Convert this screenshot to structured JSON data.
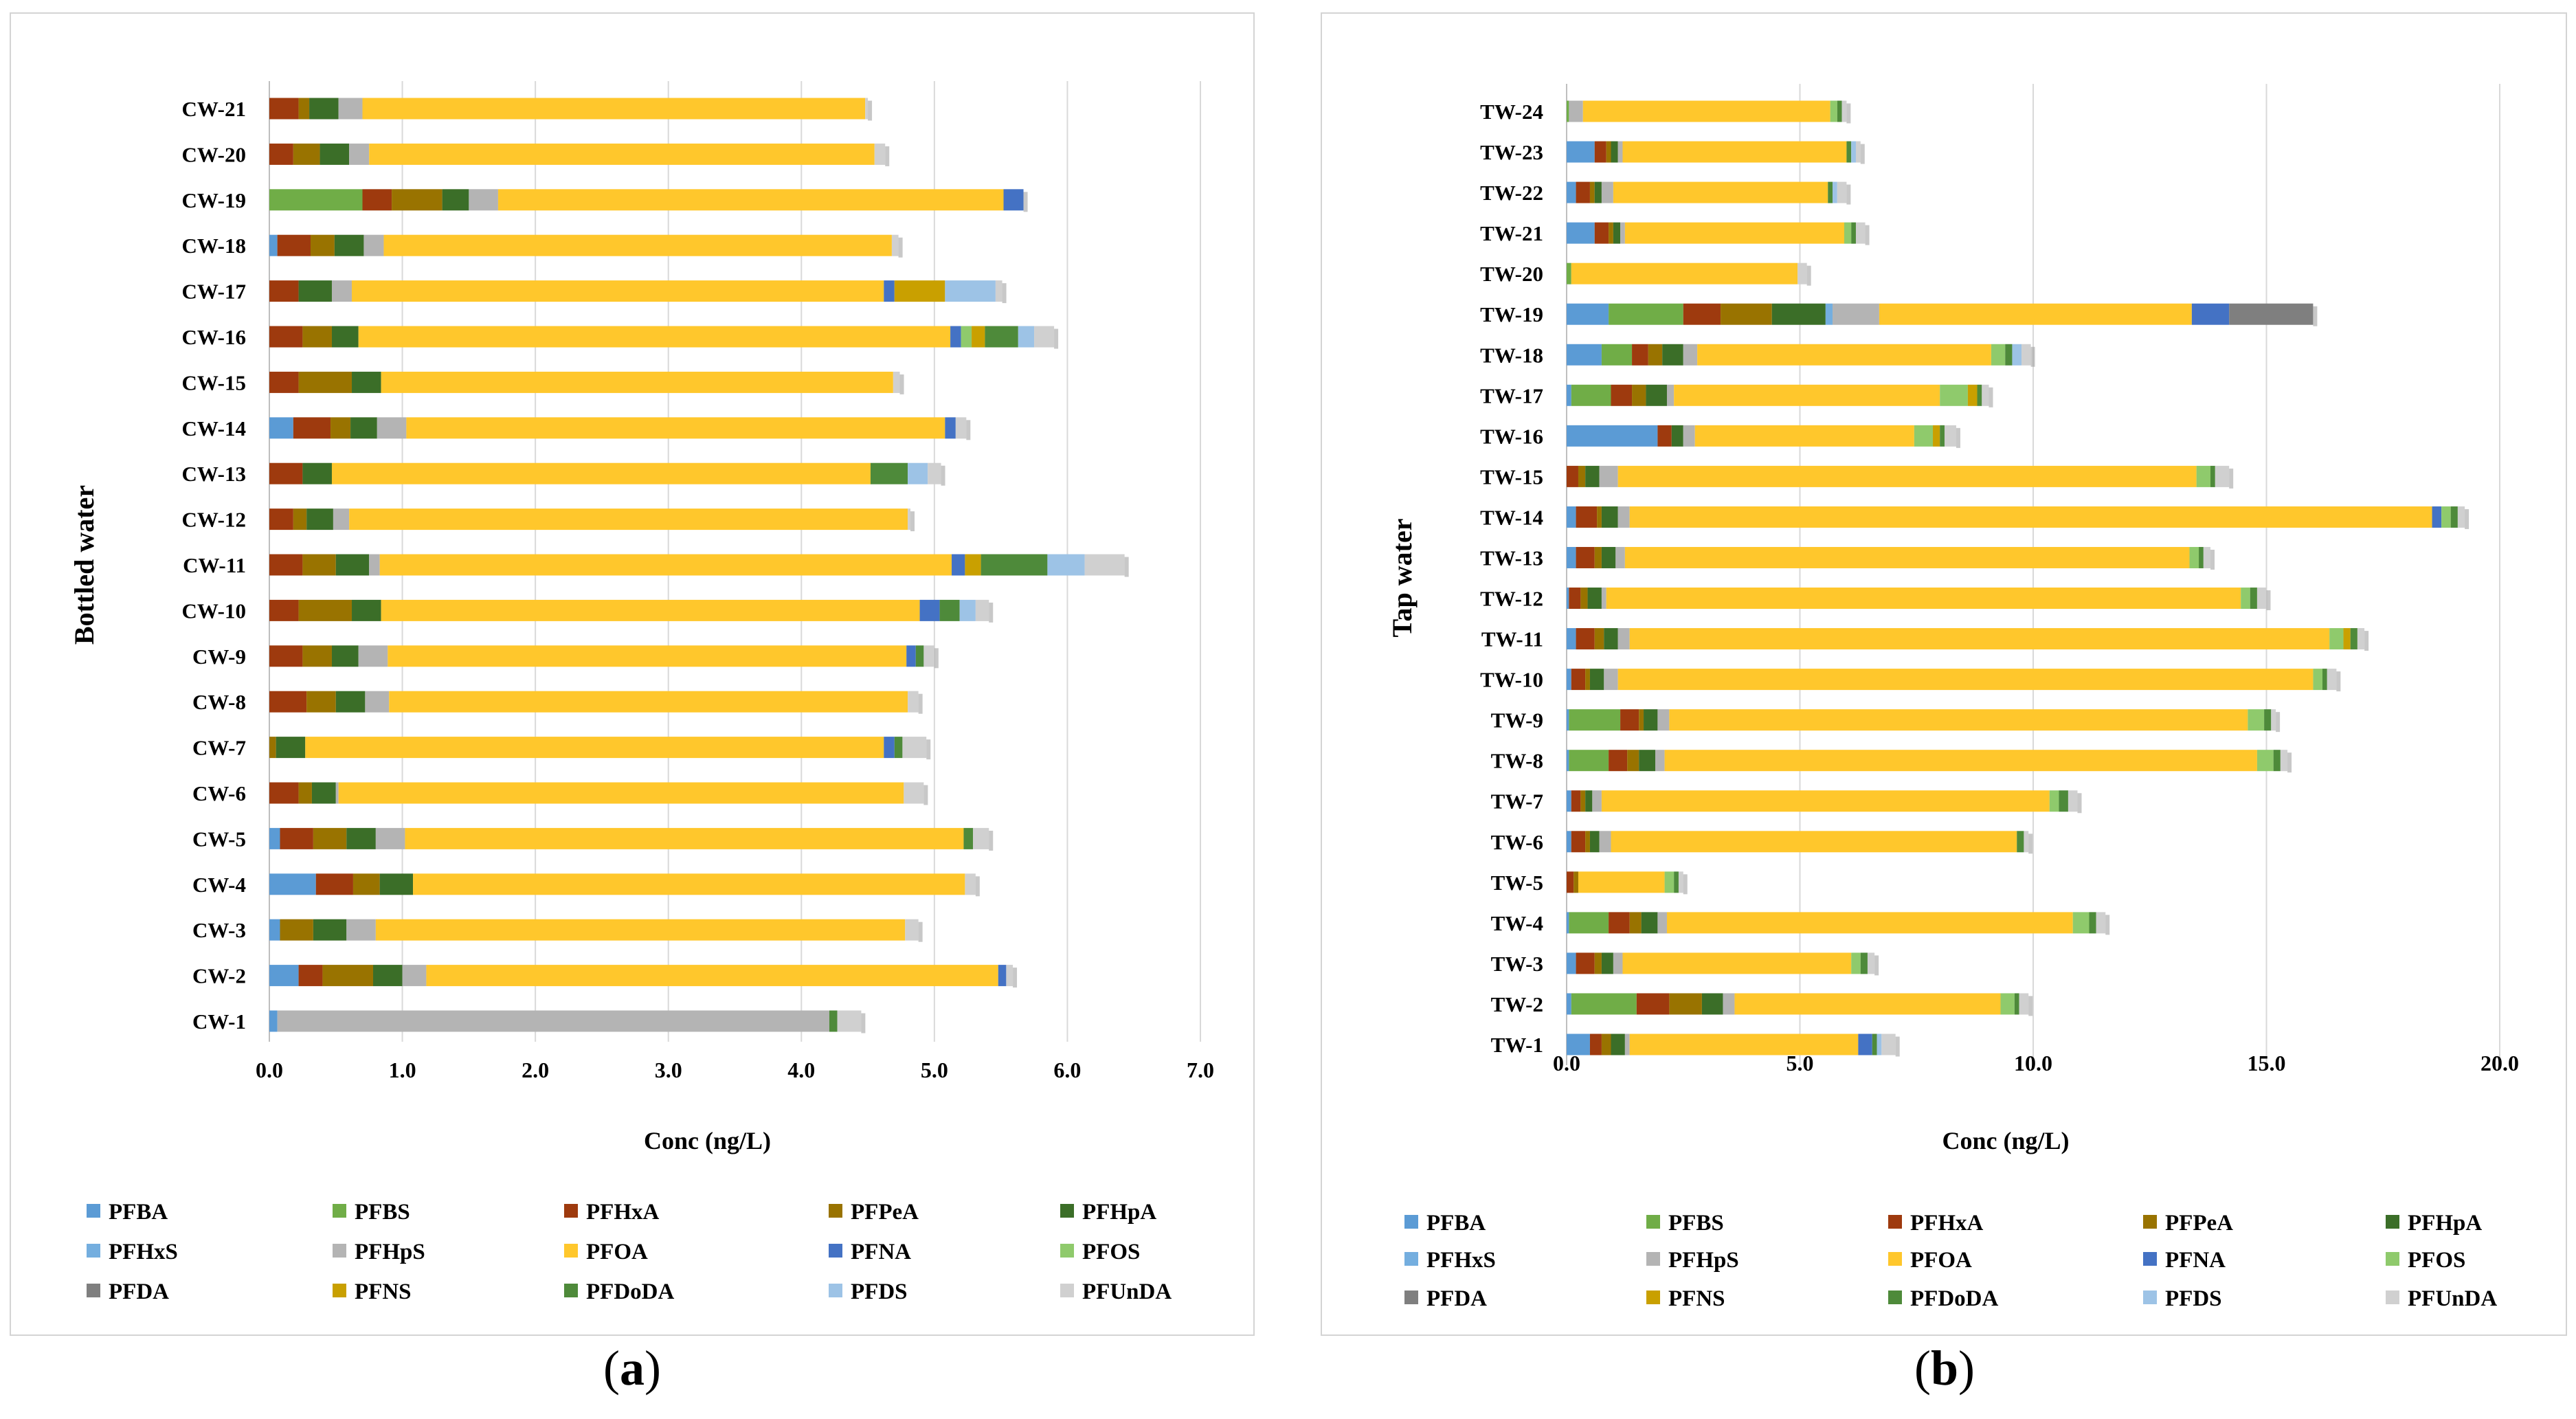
{
  "captions": {
    "a": "a",
    "b": "b"
  },
  "compounds": [
    {
      "name": "PFBA",
      "color": "#5b9bd5"
    },
    {
      "name": "PFBS",
      "color": "#70ad47"
    },
    {
      "name": "PFHxA",
      "color": "#9e3a0e"
    },
    {
      "name": "PFPeA",
      "color": "#997300"
    },
    {
      "name": "PFHpA",
      "color": "#3b6e28"
    },
    {
      "name": "PFHxS",
      "color": "#74aedf"
    },
    {
      "name": "PFHpS",
      "color": "#b4b4b4"
    },
    {
      "name": "PFOA",
      "color": "#ffc72c"
    },
    {
      "name": "PFNA",
      "color": "#4472c4"
    },
    {
      "name": "PFOS",
      "color": "#8fca6c"
    },
    {
      "name": "PFDA",
      "color": "#7f7f7f"
    },
    {
      "name": "PFNS",
      "color": "#c9a000"
    },
    {
      "name": "PFDoDA",
      "color": "#4e8a3a"
    },
    {
      "name": "PFDS",
      "color": "#9dc3e6"
    },
    {
      "name": "PFUnDA",
      "color": "#d0d0d0"
    }
  ],
  "chart_data": [
    {
      "type": "bar",
      "orientation": "horizontal",
      "stacked": true,
      "panel": "a",
      "ylabel": "Bottled water",
      "xlabel": "Conc (ng/L)",
      "xlim": [
        0,
        7
      ],
      "xticks": [
        0,
        1,
        2,
        3,
        4,
        5,
        6,
        7
      ],
      "xtick_labels": [
        "0.0",
        "1.0",
        "2.0",
        "3.0",
        "4.0",
        "5.0",
        "6.0",
        "7.0"
      ],
      "legend_position": "bottom",
      "grid": true,
      "categories": [
        "CW-1",
        "CW-2",
        "CW-3",
        "CW-4",
        "CW-5",
        "CW-6",
        "CW-7",
        "CW-8",
        "CW-9",
        "CW-10",
        "CW-11",
        "CW-12",
        "CW-13",
        "CW-14",
        "CW-15",
        "CW-16",
        "CW-17",
        "CW-18",
        "CW-19",
        "CW-20",
        "CW-21"
      ],
      "series": [
        {
          "name": "PFBA",
          "values": [
            0.06,
            0.22,
            0.08,
            0.35,
            0.08,
            0,
            0,
            0,
            0,
            0,
            0,
            0,
            0,
            0.18,
            0,
            0,
            0,
            0.06,
            0,
            0,
            0
          ]
        },
        {
          "name": "PFBS",
          "values": [
            0,
            0,
            0,
            0,
            0,
            0,
            0,
            0,
            0,
            0,
            0,
            0,
            0,
            0,
            0,
            0,
            0,
            0,
            0.7,
            0,
            0
          ]
        },
        {
          "name": "PFHxA",
          "values": [
            0,
            0.18,
            0,
            0.28,
            0.25,
            0.22,
            0,
            0.28,
            0.25,
            0.22,
            0.25,
            0.18,
            0.25,
            0.28,
            0.22,
            0.25,
            0.22,
            0.25,
            0.22,
            0.18,
            0.22
          ]
        },
        {
          "name": "PFPeA",
          "values": [
            0,
            0.38,
            0.25,
            0.2,
            0.25,
            0.1,
            0.05,
            0.22,
            0.22,
            0.4,
            0.25,
            0.1,
            0,
            0.15,
            0.4,
            0.22,
            0,
            0.18,
            0.38,
            0.2,
            0.08
          ]
        },
        {
          "name": "PFHpA",
          "values": [
            0,
            0.22,
            0.25,
            0.25,
            0.22,
            0.18,
            0.22,
            0.22,
            0.2,
            0.22,
            0.25,
            0.2,
            0.22,
            0.2,
            0.22,
            0.2,
            0.25,
            0.22,
            0.2,
            0.22,
            0.22
          ]
        },
        {
          "name": "PFHxS",
          "values": [
            0,
            0,
            0,
            0,
            0,
            0,
            0,
            0,
            0,
            0,
            0,
            0,
            0,
            0,
            0,
            0,
            0,
            0,
            0,
            0,
            0
          ]
        },
        {
          "name": "PFHpS",
          "values": [
            4.15,
            0.18,
            0.22,
            0,
            0.22,
            0.02,
            0,
            0.18,
            0.22,
            0,
            0.08,
            0.12,
            0,
            0.22,
            0,
            0,
            0.15,
            0.15,
            0.22,
            0.15,
            0.18
          ]
        },
        {
          "name": "PFOA",
          "values": [
            0,
            4.3,
            3.98,
            4.15,
            4.2,
            4.25,
            4.35,
            3.9,
            3.9,
            4.05,
            4.3,
            4.2,
            4.05,
            4.05,
            3.85,
            4.45,
            4.0,
            3.82,
            3.8,
            3.8,
            3.78
          ]
        },
        {
          "name": "PFNA",
          "values": [
            0,
            0.06,
            0,
            0,
            0,
            0,
            0.08,
            0,
            0.07,
            0.15,
            0.1,
            0,
            0,
            0.08,
            0,
            0.08,
            0.08,
            0,
            0.15,
            0,
            0
          ]
        },
        {
          "name": "PFOS",
          "values": [
            0,
            0,
            0,
            0,
            0,
            0,
            0,
            0,
            0,
            0,
            0,
            0,
            0,
            0,
            0,
            0.08,
            0,
            0,
            0,
            0,
            0
          ]
        },
        {
          "name": "PFDA",
          "values": [
            0,
            0,
            0,
            0,
            0,
            0,
            0,
            0,
            0,
            0,
            0,
            0,
            0,
            0,
            0,
            0,
            0,
            0,
            0,
            0,
            0
          ]
        },
        {
          "name": "PFNS",
          "values": [
            0,
            0,
            0,
            0,
            0,
            0,
            0,
            0,
            0,
            0,
            0.12,
            0,
            0,
            0,
            0,
            0.1,
            0.38,
            0,
            0,
            0,
            0
          ]
        },
        {
          "name": "PFDoDA",
          "values": [
            0.06,
            0,
            0,
            0,
            0.07,
            0,
            0.06,
            0,
            0.06,
            0.15,
            0.5,
            0,
            0.28,
            0,
            0,
            0.25,
            0,
            0,
            0,
            0,
            0
          ]
        },
        {
          "name": "PFDS",
          "values": [
            0,
            0,
            0,
            0,
            0,
            0,
            0,
            0,
            0,
            0.12,
            0.28,
            0,
            0.15,
            0,
            0,
            0.12,
            0.38,
            0,
            0,
            0,
            0
          ]
        },
        {
          "name": "PFUnDA",
          "values": [
            0.18,
            0.05,
            0.1,
            0.08,
            0.12,
            0.15,
            0.18,
            0.08,
            0.08,
            0.1,
            0.3,
            0.02,
            0.1,
            0.08,
            0.05,
            0.15,
            0.05,
            0.05,
            0,
            0.08,
            0.02
          ]
        }
      ]
    },
    {
      "type": "bar",
      "orientation": "horizontal",
      "stacked": true,
      "panel": "b",
      "ylabel": "Tap water",
      "xlabel": "Conc (ng/L)",
      "xlim": [
        0,
        20
      ],
      "xticks": [
        0,
        5,
        10,
        15,
        20
      ],
      "xtick_labels": [
        "0.0",
        "5.0",
        "10.0",
        "15.0",
        "20.0"
      ],
      "legend_position": "bottom",
      "grid": true,
      "categories": [
        "TW-1",
        "TW-2",
        "TW-3",
        "TW-4",
        "TW-5",
        "TW-6",
        "TW-7",
        "TW-8",
        "TW-9",
        "TW-10",
        "TW-11",
        "TW-12",
        "TW-13",
        "TW-14",
        "TW-15",
        "TW-16",
        "TW-17",
        "TW-18",
        "TW-19",
        "TW-20",
        "TW-21",
        "TW-22",
        "TW-23",
        "TW-24"
      ],
      "series": [
        {
          "name": "PFBA",
          "values": [
            0.5,
            0.1,
            0.2,
            0.05,
            0,
            0.1,
            0.1,
            0.05,
            0.05,
            0.1,
            0.2,
            0.05,
            0.2,
            0.2,
            0,
            1.95,
            0.1,
            0.75,
            0.9,
            0,
            0.6,
            0.2,
            0.6,
            0
          ]
        },
        {
          "name": "PFBS",
          "values": [
            0,
            1.4,
            0,
            0.85,
            0,
            0,
            0,
            0.85,
            1.1,
            0,
            0,
            0,
            0,
            0,
            0,
            0,
            0.85,
            0.65,
            1.6,
            0.1,
            0,
            0,
            0,
            0.05
          ]
        },
        {
          "name": "PFHxA",
          "values": [
            0.25,
            0.7,
            0.4,
            0.45,
            0.15,
            0.3,
            0.2,
            0.4,
            0.4,
            0.3,
            0.4,
            0.25,
            0.4,
            0.45,
            0.25,
            0.3,
            0.45,
            0.35,
            0.8,
            0,
            0.3,
            0.3,
            0.25,
            0
          ]
        },
        {
          "name": "PFPeA",
          "values": [
            0.2,
            0.7,
            0.15,
            0.25,
            0.1,
            0.1,
            0.1,
            0.25,
            0.1,
            0.1,
            0.2,
            0.15,
            0.15,
            0.1,
            0.15,
            0,
            0.3,
            0.3,
            1.1,
            0,
            0.1,
            0.1,
            0.1,
            0
          ]
        },
        {
          "name": "PFHpA",
          "values": [
            0.3,
            0.45,
            0.25,
            0.35,
            0,
            0.2,
            0.15,
            0.35,
            0.3,
            0.3,
            0.3,
            0.3,
            0.3,
            0.35,
            0.3,
            0.25,
            0.45,
            0.45,
            1.15,
            0,
            0.15,
            0.15,
            0.15,
            0
          ]
        },
        {
          "name": "PFHxS",
          "values": [
            0,
            0,
            0,
            0,
            0,
            0,
            0,
            0,
            0,
            0,
            0,
            0,
            0,
            0,
            0,
            0,
            0,
            0,
            0.15,
            0,
            0,
            0,
            0,
            0
          ]
        },
        {
          "name": "PFHpS",
          "values": [
            0.1,
            0.25,
            0.2,
            0.2,
            0,
            0.25,
            0.2,
            0.2,
            0.25,
            0.3,
            0.25,
            0.1,
            0.2,
            0.25,
            0.4,
            0.25,
            0.15,
            0.3,
            1.0,
            0,
            0.1,
            0.25,
            0.1,
            0.3
          ]
        },
        {
          "name": "PFOA",
          "values": [
            4.9,
            5.7,
            4.9,
            8.7,
            1.85,
            8.7,
            9.6,
            12.7,
            12.4,
            14.9,
            15.0,
            13.6,
            12.1,
            17.2,
            12.4,
            4.7,
            5.7,
            6.3,
            6.7,
            4.85,
            4.7,
            4.6,
            4.8,
            5.3
          ]
        },
        {
          "name": "PFNA",
          "values": [
            0.3,
            0,
            0,
            0,
            0,
            0,
            0,
            0,
            0,
            0,
            0,
            0,
            0,
            0.2,
            0,
            0,
            0,
            0,
            0.8,
            0,
            0,
            0,
            0,
            0
          ]
        },
        {
          "name": "PFOS",
          "values": [
            0,
            0.3,
            0.2,
            0.35,
            0.2,
            0,
            0.2,
            0.35,
            0.35,
            0.2,
            0.3,
            0.2,
            0.2,
            0.2,
            0.3,
            0.4,
            0.6,
            0.3,
            0,
            0,
            0.15,
            0,
            0,
            0.15
          ]
        },
        {
          "name": "PFDA",
          "values": [
            0,
            0,
            0,
            0,
            0,
            0,
            0,
            0,
            0,
            0,
            0,
            0,
            0,
            0,
            0,
            0,
            0,
            0,
            1.8,
            0,
            0,
            0,
            0,
            0
          ]
        },
        {
          "name": "PFNS",
          "values": [
            0,
            0,
            0,
            0,
            0,
            0,
            0,
            0,
            0,
            0,
            0.15,
            0,
            0,
            0,
            0,
            0.15,
            0.2,
            0,
            0,
            0,
            0,
            0,
            0,
            0
          ]
        },
        {
          "name": "PFDoDA",
          "values": [
            0.1,
            0.1,
            0.15,
            0.15,
            0.1,
            0.15,
            0.2,
            0.15,
            0.15,
            0.1,
            0.15,
            0.15,
            0.1,
            0.15,
            0.1,
            0.1,
            0.1,
            0.15,
            0,
            0,
            0.1,
            0.1,
            0.1,
            0.1
          ]
        },
        {
          "name": "PFDS",
          "values": [
            0.1,
            0,
            0,
            0,
            0,
            0,
            0,
            0,
            0,
            0,
            0,
            0,
            0,
            0,
            0,
            0,
            0,
            0.2,
            0,
            0,
            0,
            0.1,
            0.1,
            0
          ]
        },
        {
          "name": "PFUnDA",
          "values": [
            0.3,
            0.2,
            0.15,
            0.2,
            0.1,
            0.1,
            0.2,
            0.15,
            0.1,
            0.2,
            0.15,
            0.2,
            0.15,
            0.15,
            0.3,
            0.25,
            0.15,
            0.2,
            0,
            0.2,
            0.2,
            0.2,
            0.1,
            0.1
          ]
        }
      ]
    }
  ]
}
